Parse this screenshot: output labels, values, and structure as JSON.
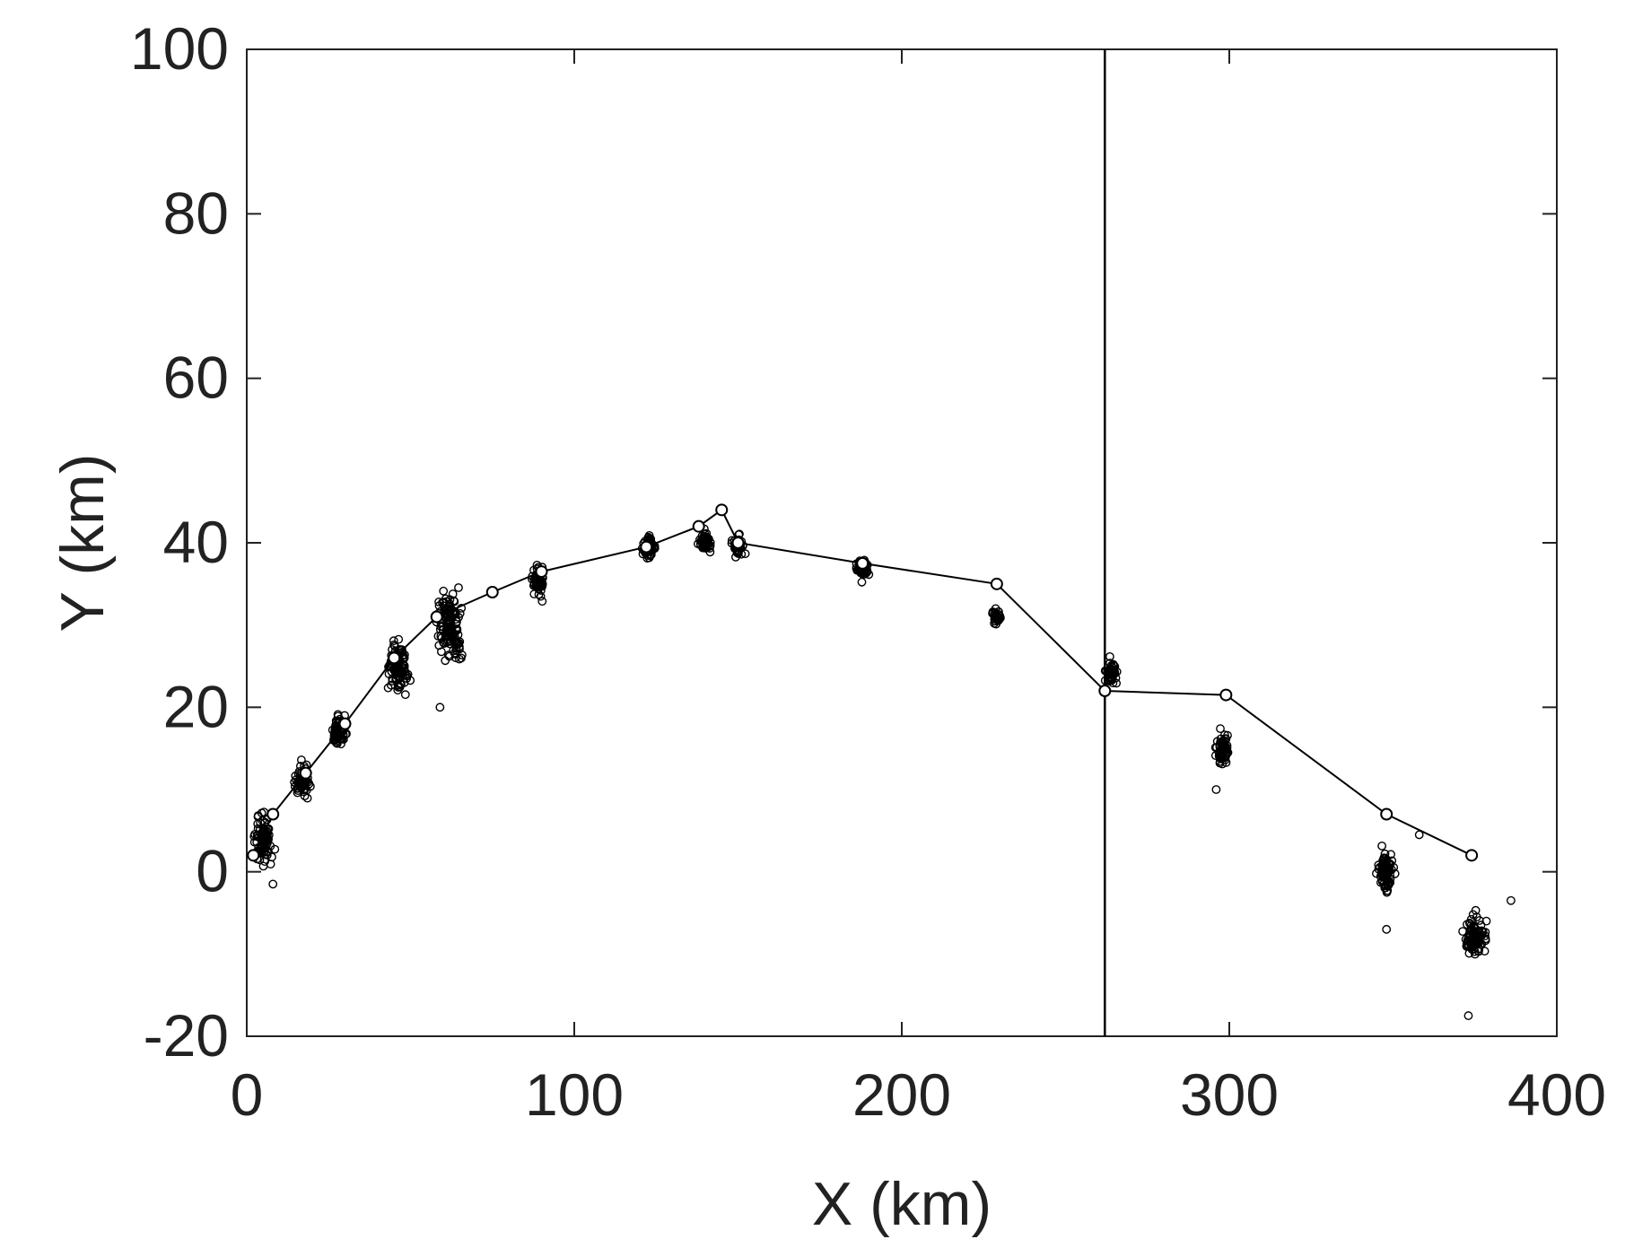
{
  "chart_data": {
    "type": "scatter",
    "xlabel": "X (km)",
    "ylabel": "Y (km)",
    "xlim": [
      0,
      400
    ],
    "ylim": [
      -20,
      100
    ],
    "xticks": [
      0,
      100,
      200,
      300,
      400
    ],
    "yticks": [
      -20,
      0,
      20,
      40,
      60,
      80,
      100
    ],
    "xtick_labels": [
      "0",
      "100",
      "200",
      "300",
      "400"
    ],
    "ytick_labels": [
      "-20",
      "0",
      "20",
      "40",
      "60",
      "80",
      "100"
    ],
    "grid": false,
    "legend": "none",
    "vertical_line_x": 262,
    "series": [
      {
        "kind": "line-with-markers",
        "x": [
          2,
          8,
          18,
          30,
          45,
          58,
          75,
          90,
          122,
          138,
          145,
          150,
          188,
          229,
          262,
          299,
          348,
          374
        ],
        "y": [
          2,
          7,
          12,
          18,
          26,
          31,
          34,
          36.5,
          39.5,
          42,
          44,
          40,
          37.5,
          35,
          22,
          21.5,
          7,
          2
        ]
      },
      {
        "kind": "clusters",
        "clusters": [
          {
            "x": 5,
            "y": 4,
            "sx": 2.2,
            "sy": 2.2,
            "n": 90
          },
          {
            "x": 17,
            "y": 11,
            "sx": 2,
            "sy": 1.6,
            "n": 60
          },
          {
            "x": 28,
            "y": 17,
            "sx": 2,
            "sy": 1.4,
            "n": 60
          },
          {
            "x": 46,
            "y": 25,
            "sx": 2.6,
            "sy": 2.3,
            "n": 110
          },
          {
            "x": 62,
            "y": 30,
            "sx": 3.2,
            "sy": 3,
            "n": 130
          },
          {
            "x": 89,
            "y": 35.5,
            "sx": 1.4,
            "sy": 1.4,
            "n": 60
          },
          {
            "x": 123,
            "y": 39.5,
            "sx": 1.4,
            "sy": 1,
            "n": 60
          },
          {
            "x": 140,
            "y": 40,
            "sx": 1.4,
            "sy": 1,
            "n": 60
          },
          {
            "x": 150,
            "y": 39.5,
            "sx": 1.2,
            "sy": 1,
            "n": 50
          },
          {
            "x": 188,
            "y": 37,
            "sx": 1.4,
            "sy": 1,
            "n": 60
          },
          {
            "x": 229,
            "y": 31,
            "sx": 1,
            "sy": 0.8,
            "n": 30
          },
          {
            "x": 264,
            "y": 24,
            "sx": 1.4,
            "sy": 1.2,
            "n": 50
          },
          {
            "x": 298,
            "y": 15,
            "sx": 1.8,
            "sy": 1.6,
            "n": 60
          },
          {
            "x": 348,
            "y": 0,
            "sx": 2,
            "sy": 2,
            "n": 80
          },
          {
            "x": 375,
            "y": -8,
            "sx": 2.4,
            "sy": 2.2,
            "n": 90
          }
        ],
        "outliers": [
          {
            "x": 8,
            "y": -1.5
          },
          {
            "x": 59,
            "y": 20
          },
          {
            "x": 296,
            "y": 10
          },
          {
            "x": 348,
            "y": -7
          },
          {
            "x": 358,
            "y": 4.5
          },
          {
            "x": 373,
            "y": -17.5
          },
          {
            "x": 386,
            "y": -3.5
          }
        ]
      }
    ]
  }
}
